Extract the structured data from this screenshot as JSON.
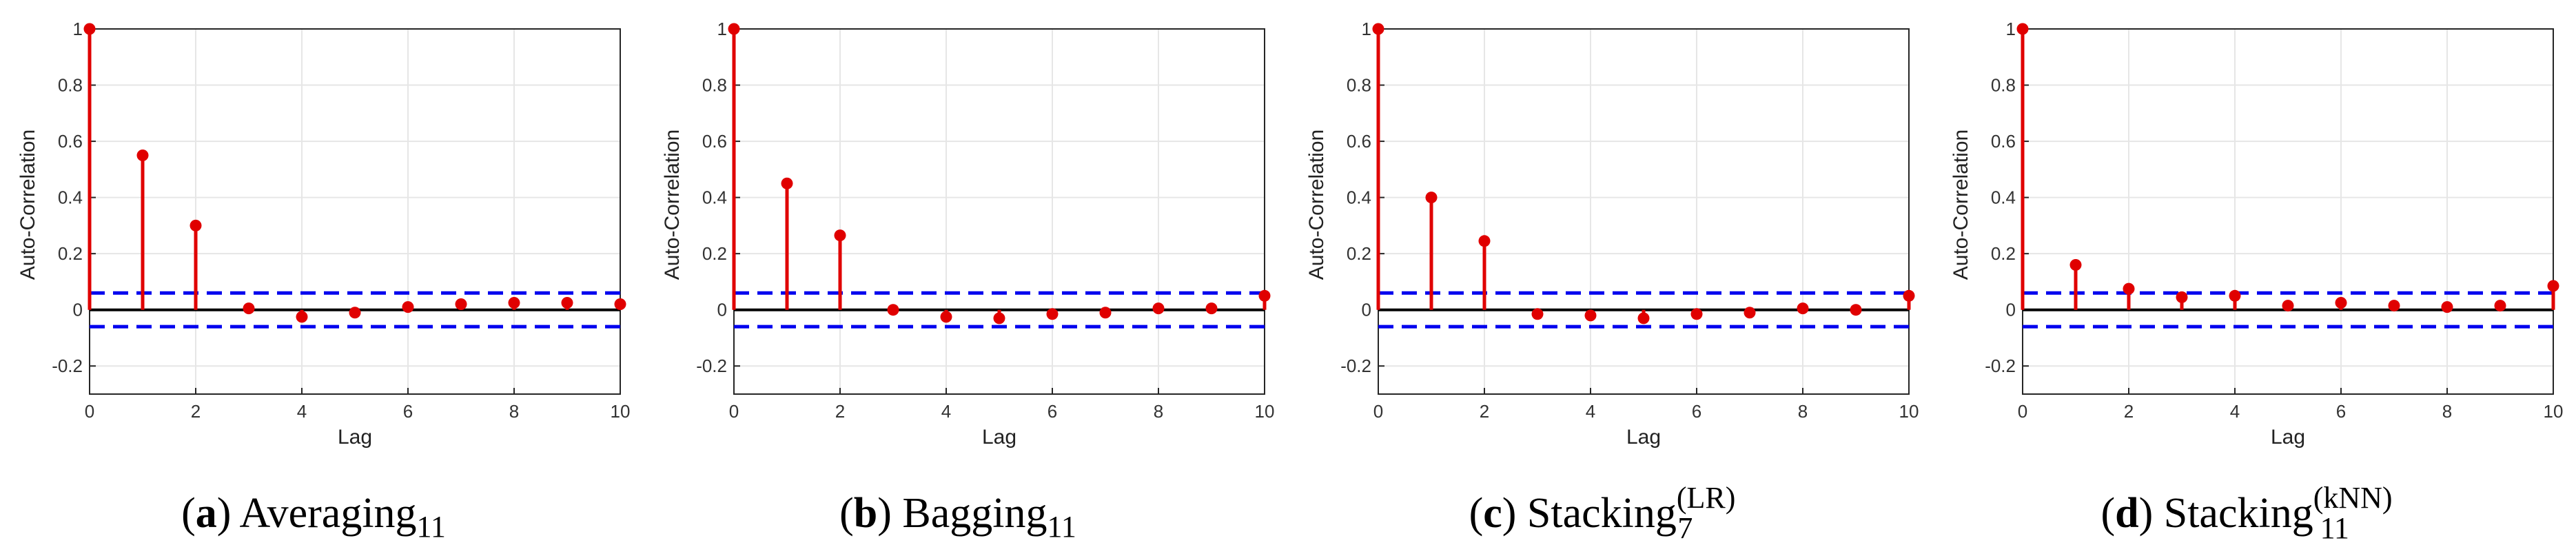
{
  "chart_data": [
    {
      "type": "stem",
      "caption": {
        "label": "a",
        "name": "Averaging",
        "sub": "11",
        "sup": ""
      },
      "xlabel": "Lag",
      "ylabel": "Auto-Correlation",
      "xlim": [
        0,
        10
      ],
      "ylim": [
        -0.3,
        1
      ],
      "xticks": [
        "0",
        "2",
        "4",
        "6",
        "8",
        "10"
      ],
      "yticks": [
        "-0.2",
        "0",
        "0.2",
        "0.4",
        "0.6",
        "0.8",
        "1"
      ],
      "lags": [
        0,
        1,
        2,
        3,
        4,
        5,
        6,
        7,
        8,
        9,
        10
      ],
      "values": [
        1.0,
        0.55,
        0.3,
        0.005,
        -0.025,
        -0.01,
        0.01,
        0.02,
        0.025,
        0.025,
        0.02
      ],
      "confidence_bounds": [
        0.06,
        -0.06
      ]
    },
    {
      "type": "stem",
      "caption": {
        "label": "b",
        "name": "Bagging",
        "sub": "11",
        "sup": ""
      },
      "xlabel": "Lag",
      "ylabel": "Auto-Correlation",
      "xlim": [
        0,
        10
      ],
      "ylim": [
        -0.3,
        1
      ],
      "xticks": [
        "0",
        "2",
        "4",
        "6",
        "8",
        "10"
      ],
      "yticks": [
        "-0.2",
        "0",
        "0.2",
        "0.4",
        "0.6",
        "0.8",
        "1"
      ],
      "lags": [
        0,
        1,
        2,
        3,
        4,
        5,
        6,
        7,
        8,
        9,
        10
      ],
      "values": [
        1.0,
        0.45,
        0.265,
        0.0,
        -0.025,
        -0.03,
        -0.015,
        -0.01,
        0.005,
        0.005,
        0.05
      ],
      "confidence_bounds": [
        0.06,
        -0.06
      ]
    },
    {
      "type": "stem",
      "caption": {
        "label": "c",
        "name": "Stacking",
        "sub": "7",
        "sup": "(LR)"
      },
      "xlabel": "Lag",
      "ylabel": "Auto-Correlation",
      "xlim": [
        0,
        10
      ],
      "ylim": [
        -0.3,
        1
      ],
      "xticks": [
        "0",
        "2",
        "4",
        "6",
        "8",
        "10"
      ],
      "yticks": [
        "-0.2",
        "0",
        "0.2",
        "0.4",
        "0.6",
        "0.8",
        "1"
      ],
      "lags": [
        0,
        1,
        2,
        3,
        4,
        5,
        6,
        7,
        8,
        9,
        10
      ],
      "values": [
        1.0,
        0.4,
        0.245,
        -0.015,
        -0.02,
        -0.03,
        -0.015,
        -0.01,
        0.005,
        0.0,
        0.05
      ],
      "confidence_bounds": [
        0.06,
        -0.06
      ]
    },
    {
      "type": "stem",
      "caption": {
        "label": "d",
        "name": "Stacking",
        "sub": "11",
        "sup": "(kNN)"
      },
      "xlabel": "Lag",
      "ylabel": "Auto-Correlation",
      "xlim": [
        0,
        10
      ],
      "ylim": [
        -0.3,
        1
      ],
      "xticks": [
        "0",
        "2",
        "4",
        "6",
        "8",
        "10"
      ],
      "yticks": [
        "-0.2",
        "0",
        "0.2",
        "0.4",
        "0.6",
        "0.8",
        "1"
      ],
      "lags": [
        0,
        1,
        2,
        3,
        4,
        5,
        6,
        7,
        8,
        9,
        10
      ],
      "values": [
        1.0,
        0.16,
        0.075,
        0.045,
        0.05,
        0.015,
        0.025,
        0.015,
        0.01,
        0.015,
        0.085
      ],
      "confidence_bounds": [
        0.06,
        -0.06
      ]
    }
  ],
  "colors": {
    "stem": "#e00000",
    "bound": "#0000ee",
    "zero_line": "#000000",
    "grid": "#e6e6e6",
    "axis": "#262626"
  }
}
